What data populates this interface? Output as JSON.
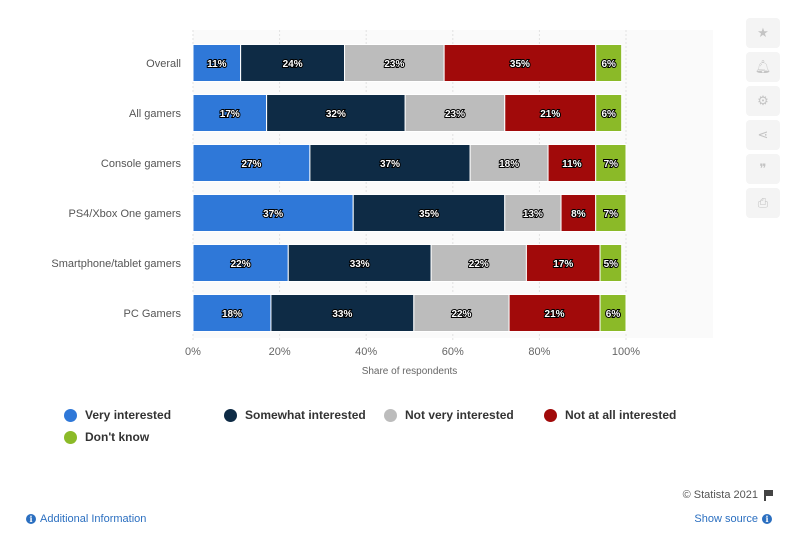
{
  "chart_data": {
    "type": "bar",
    "orientation": "horizontal",
    "stacked": true,
    "title": "",
    "xlabel": "Share of respondents",
    "ylabel": "",
    "xlim": [
      0,
      100
    ],
    "x_ticks": [
      "0%",
      "20%",
      "40%",
      "60%",
      "80%",
      "100%"
    ],
    "grid": true,
    "legend_position": "bottom",
    "categories": [
      "Overall",
      "All gamers",
      "Console gamers",
      "PS4/Xbox One gamers",
      "Smartphone/tablet gamers",
      "PC Gamers"
    ],
    "series": [
      {
        "name": "Very interested",
        "color": "#2f78d8",
        "values": [
          11,
          17,
          27,
          37,
          22,
          18
        ]
      },
      {
        "name": "Somewhat interested",
        "color": "#0e2b45",
        "values": [
          24,
          32,
          37,
          35,
          33,
          33
        ]
      },
      {
        "name": "Not very interested",
        "color": "#bcbcbc",
        "values": [
          23,
          23,
          18,
          13,
          22,
          22
        ]
      },
      {
        "name": "Not at all interested",
        "color": "#a10a0a",
        "values": [
          35,
          21,
          11,
          8,
          17,
          21
        ]
      },
      {
        "name": "Don't know",
        "color": "#8bba28",
        "values": [
          6,
          6,
          7,
          7,
          5,
          6
        ]
      }
    ],
    "value_suffix": "%"
  },
  "footer": {
    "credit": "© Statista 2021",
    "additional_info": "Additional Information",
    "show_source": "Show source"
  },
  "toolbar": {
    "icons": [
      "star-icon",
      "bell-icon",
      "gear-icon",
      "share-icon",
      "quote-icon",
      "print-icon"
    ]
  }
}
